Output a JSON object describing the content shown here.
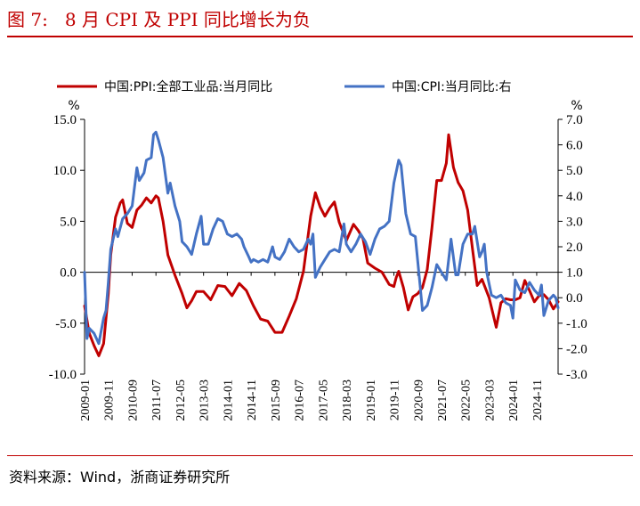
{
  "title": "图 7:   8 月 CPI 及 PPI 同比增长为负",
  "source": "资料来源：Wind，浙商证券研究所",
  "chart_data": {
    "type": "line",
    "left_unit": "%",
    "right_unit": "%",
    "left_axis": {
      "ylim": [
        -10,
        15
      ],
      "ticks": [
        "15.0",
        "10.0",
        "5.0",
        "0.0",
        "-5.0",
        "-10.0"
      ],
      "tick_values": [
        15,
        10,
        5,
        0,
        -5,
        -10
      ]
    },
    "right_axis": {
      "ylim": [
        -3,
        7
      ],
      "ticks": [
        "7.0",
        "6.0",
        "5.0",
        "4.0",
        "3.0",
        "2.0",
        "1.0",
        "0.0",
        "-1.0",
        "-2.0",
        "-3.0"
      ],
      "tick_values": [
        7,
        6,
        5,
        4,
        3,
        2,
        1,
        0,
        -1,
        -2,
        -3
      ]
    },
    "x_ticks": [
      "2009-01",
      "2009-11",
      "2010-09",
      "2011-07",
      "2012-05",
      "2013-03",
      "2014-01",
      "2014-11",
      "2015-09",
      "2016-07",
      "2017-05",
      "2018-03",
      "2019-01",
      "2019-11",
      "2020-09",
      "2021-07",
      "2022-05",
      "2023-03",
      "2024-01",
      "2024-11"
    ],
    "x_range": [
      "2009-01",
      "2025-08"
    ],
    "series": [
      {
        "name": "中国:PPI:全部工业品:当月同比",
        "axis": "left",
        "color": "#c00000",
        "points": [
          [
            "2009-01",
            -3.3
          ],
          [
            "2009-03",
            -6.0
          ],
          [
            "2009-05",
            -7.2
          ],
          [
            "2009-07",
            -8.2
          ],
          [
            "2009-09",
            -7.0
          ],
          [
            "2009-11",
            -2.1
          ],
          [
            "2009-12",
            1.7
          ],
          [
            "2010-02",
            5.4
          ],
          [
            "2010-04",
            6.8
          ],
          [
            "2010-05",
            7.1
          ],
          [
            "2010-07",
            4.8
          ],
          [
            "2010-09",
            4.4
          ],
          [
            "2010-11",
            6.1
          ],
          [
            "2011-01",
            6.6
          ],
          [
            "2011-03",
            7.3
          ],
          [
            "2011-05",
            6.8
          ],
          [
            "2011-07",
            7.5
          ],
          [
            "2011-08",
            7.3
          ],
          [
            "2011-10",
            5.0
          ],
          [
            "2011-12",
            1.7
          ],
          [
            "2012-03",
            -0.3
          ],
          [
            "2012-06",
            -2.1
          ],
          [
            "2012-08",
            -3.5
          ],
          [
            "2012-10",
            -2.8
          ],
          [
            "2012-12",
            -1.9
          ],
          [
            "2013-03",
            -1.9
          ],
          [
            "2013-06",
            -2.7
          ],
          [
            "2013-09",
            -1.3
          ],
          [
            "2013-12",
            -1.4
          ],
          [
            "2014-03",
            -2.3
          ],
          [
            "2014-06",
            -1.1
          ],
          [
            "2014-09",
            -1.8
          ],
          [
            "2014-12",
            -3.3
          ],
          [
            "2015-03",
            -4.6
          ],
          [
            "2015-06",
            -4.8
          ],
          [
            "2015-09",
            -5.9
          ],
          [
            "2015-12",
            -5.9
          ],
          [
            "2016-03",
            -4.3
          ],
          [
            "2016-06",
            -2.6
          ],
          [
            "2016-09",
            0.1
          ],
          [
            "2016-12",
            5.5
          ],
          [
            "2017-02",
            7.8
          ],
          [
            "2017-04",
            6.4
          ],
          [
            "2017-06",
            5.5
          ],
          [
            "2017-08",
            6.3
          ],
          [
            "2017-10",
            6.9
          ],
          [
            "2017-12",
            4.9
          ],
          [
            "2018-03",
            3.1
          ],
          [
            "2018-06",
            4.7
          ],
          [
            "2018-08",
            4.1
          ],
          [
            "2018-10",
            3.3
          ],
          [
            "2018-12",
            0.9
          ],
          [
            "2019-03",
            0.4
          ],
          [
            "2019-06",
            0.0
          ],
          [
            "2019-09",
            -1.2
          ],
          [
            "2019-11",
            -1.4
          ],
          [
            "2019-12",
            -0.5
          ],
          [
            "2020-01",
            0.1
          ],
          [
            "2020-03",
            -1.5
          ],
          [
            "2020-05",
            -3.7
          ],
          [
            "2020-07",
            -2.4
          ],
          [
            "2020-09",
            -2.1
          ],
          [
            "2020-11",
            -1.5
          ],
          [
            "2021-01",
            0.3
          ],
          [
            "2021-03",
            4.4
          ],
          [
            "2021-05",
            9.0
          ],
          [
            "2021-07",
            9.0
          ],
          [
            "2021-09",
            10.7
          ],
          [
            "2021-10",
            13.5
          ],
          [
            "2021-12",
            10.3
          ],
          [
            "2022-02",
            8.8
          ],
          [
            "2022-04",
            8.0
          ],
          [
            "2022-06",
            6.1
          ],
          [
            "2022-08",
            2.3
          ],
          [
            "2022-10",
            -1.3
          ],
          [
            "2022-12",
            -0.7
          ],
          [
            "2023-03",
            -2.5
          ],
          [
            "2023-06",
            -5.4
          ],
          [
            "2023-08",
            -3.0
          ],
          [
            "2023-10",
            -2.6
          ],
          [
            "2023-12",
            -2.7
          ],
          [
            "2024-02",
            -2.7
          ],
          [
            "2024-04",
            -2.5
          ],
          [
            "2024-06",
            -0.8
          ],
          [
            "2024-08",
            -1.8
          ],
          [
            "2024-10",
            -2.9
          ],
          [
            "2024-12",
            -2.3
          ],
          [
            "2025-02",
            -2.2
          ],
          [
            "2025-04",
            -2.7
          ],
          [
            "2025-06",
            -3.6
          ],
          [
            "2025-08",
            -2.9
          ]
        ]
      },
      {
        "name": "中国:CPI:当月同比:右",
        "axis": "right",
        "color": "#4472c4",
        "points": [
          [
            "2009-01",
            1.0
          ],
          [
            "2009-02",
            -1.6
          ],
          [
            "2009-03",
            -1.2
          ],
          [
            "2009-05",
            -1.4
          ],
          [
            "2009-07",
            -1.8
          ],
          [
            "2009-09",
            -0.8
          ],
          [
            "2009-10",
            -0.5
          ],
          [
            "2009-11",
            0.6
          ],
          [
            "2009-12",
            1.9
          ],
          [
            "2010-02",
            2.7
          ],
          [
            "2010-03",
            2.4
          ],
          [
            "2010-05",
            3.1
          ],
          [
            "2010-07",
            3.3
          ],
          [
            "2010-09",
            3.6
          ],
          [
            "2010-11",
            5.1
          ],
          [
            "2010-12",
            4.6
          ],
          [
            "2011-02",
            4.9
          ],
          [
            "2011-03",
            5.4
          ],
          [
            "2011-05",
            5.5
          ],
          [
            "2011-06",
            6.4
          ],
          [
            "2011-07",
            6.5
          ],
          [
            "2011-08",
            6.2
          ],
          [
            "2011-10",
            5.5
          ],
          [
            "2011-12",
            4.1
          ],
          [
            "2012-01",
            4.5
          ],
          [
            "2012-03",
            3.6
          ],
          [
            "2012-05",
            3.0
          ],
          [
            "2012-06",
            2.2
          ],
          [
            "2012-08",
            2.0
          ],
          [
            "2012-10",
            1.7
          ],
          [
            "2012-12",
            2.5
          ],
          [
            "2013-02",
            3.2
          ],
          [
            "2013-03",
            2.1
          ],
          [
            "2013-05",
            2.1
          ],
          [
            "2013-07",
            2.7
          ],
          [
            "2013-09",
            3.1
          ],
          [
            "2013-11",
            3.0
          ],
          [
            "2014-01",
            2.5
          ],
          [
            "2014-03",
            2.4
          ],
          [
            "2014-05",
            2.5
          ],
          [
            "2014-07",
            2.3
          ],
          [
            "2014-08",
            2.0
          ],
          [
            "2014-10",
            1.6
          ],
          [
            "2014-11",
            1.4
          ],
          [
            "2014-12",
            1.5
          ],
          [
            "2015-02",
            1.4
          ],
          [
            "2015-04",
            1.5
          ],
          [
            "2015-06",
            1.4
          ],
          [
            "2015-08",
            2.0
          ],
          [
            "2015-09",
            1.6
          ],
          [
            "2015-11",
            1.5
          ],
          [
            "2016-01",
            1.8
          ],
          [
            "2016-03",
            2.3
          ],
          [
            "2016-05",
            2.0
          ],
          [
            "2016-07",
            1.8
          ],
          [
            "2016-09",
            1.9
          ],
          [
            "2016-11",
            2.3
          ],
          [
            "2016-12",
            2.1
          ],
          [
            "2017-01",
            2.5
          ],
          [
            "2017-02",
            0.8
          ],
          [
            "2017-04",
            1.2
          ],
          [
            "2017-06",
            1.5
          ],
          [
            "2017-08",
            1.8
          ],
          [
            "2017-10",
            1.9
          ],
          [
            "2017-12",
            1.8
          ],
          [
            "2018-02",
            2.9
          ],
          [
            "2018-03",
            2.1
          ],
          [
            "2018-05",
            1.8
          ],
          [
            "2018-07",
            2.1
          ],
          [
            "2018-09",
            2.5
          ],
          [
            "2018-11",
            2.2
          ],
          [
            "2019-01",
            1.7
          ],
          [
            "2019-03",
            2.3
          ],
          [
            "2019-05",
            2.7
          ],
          [
            "2019-07",
            2.8
          ],
          [
            "2019-09",
            3.0
          ],
          [
            "2019-11",
            4.5
          ],
          [
            "2020-01",
            5.4
          ],
          [
            "2020-02",
            5.2
          ],
          [
            "2020-04",
            3.3
          ],
          [
            "2020-06",
            2.5
          ],
          [
            "2020-08",
            2.4
          ],
          [
            "2020-10",
            0.5
          ],
          [
            "2020-11",
            -0.5
          ],
          [
            "2021-01",
            -0.3
          ],
          [
            "2021-03",
            0.4
          ],
          [
            "2021-05",
            1.3
          ],
          [
            "2021-07",
            1.0
          ],
          [
            "2021-09",
            0.7
          ],
          [
            "2021-11",
            2.3
          ],
          [
            "2022-01",
            0.9
          ],
          [
            "2022-02",
            0.9
          ],
          [
            "2022-04",
            2.1
          ],
          [
            "2022-06",
            2.5
          ],
          [
            "2022-08",
            2.5
          ],
          [
            "2022-09",
            2.8
          ],
          [
            "2022-11",
            1.6
          ],
          [
            "2022-12",
            1.8
          ],
          [
            "2023-01",
            2.1
          ],
          [
            "2023-02",
            1.0
          ],
          [
            "2023-04",
            0.1
          ],
          [
            "2023-06",
            0.0
          ],
          [
            "2023-08",
            0.1
          ],
          [
            "2023-10",
            -0.2
          ],
          [
            "2023-12",
            -0.3
          ],
          [
            "2024-01",
            -0.8
          ],
          [
            "2024-02",
            0.7
          ],
          [
            "2024-04",
            0.3
          ],
          [
            "2024-06",
            0.2
          ],
          [
            "2024-08",
            0.6
          ],
          [
            "2024-10",
            0.3
          ],
          [
            "2024-12",
            0.1
          ],
          [
            "2025-01",
            0.5
          ],
          [
            "2025-02",
            -0.7
          ],
          [
            "2025-04",
            -0.1
          ],
          [
            "2025-06",
            0.1
          ],
          [
            "2025-07",
            0.0
          ],
          [
            "2025-08",
            -0.4
          ]
        ]
      }
    ]
  }
}
